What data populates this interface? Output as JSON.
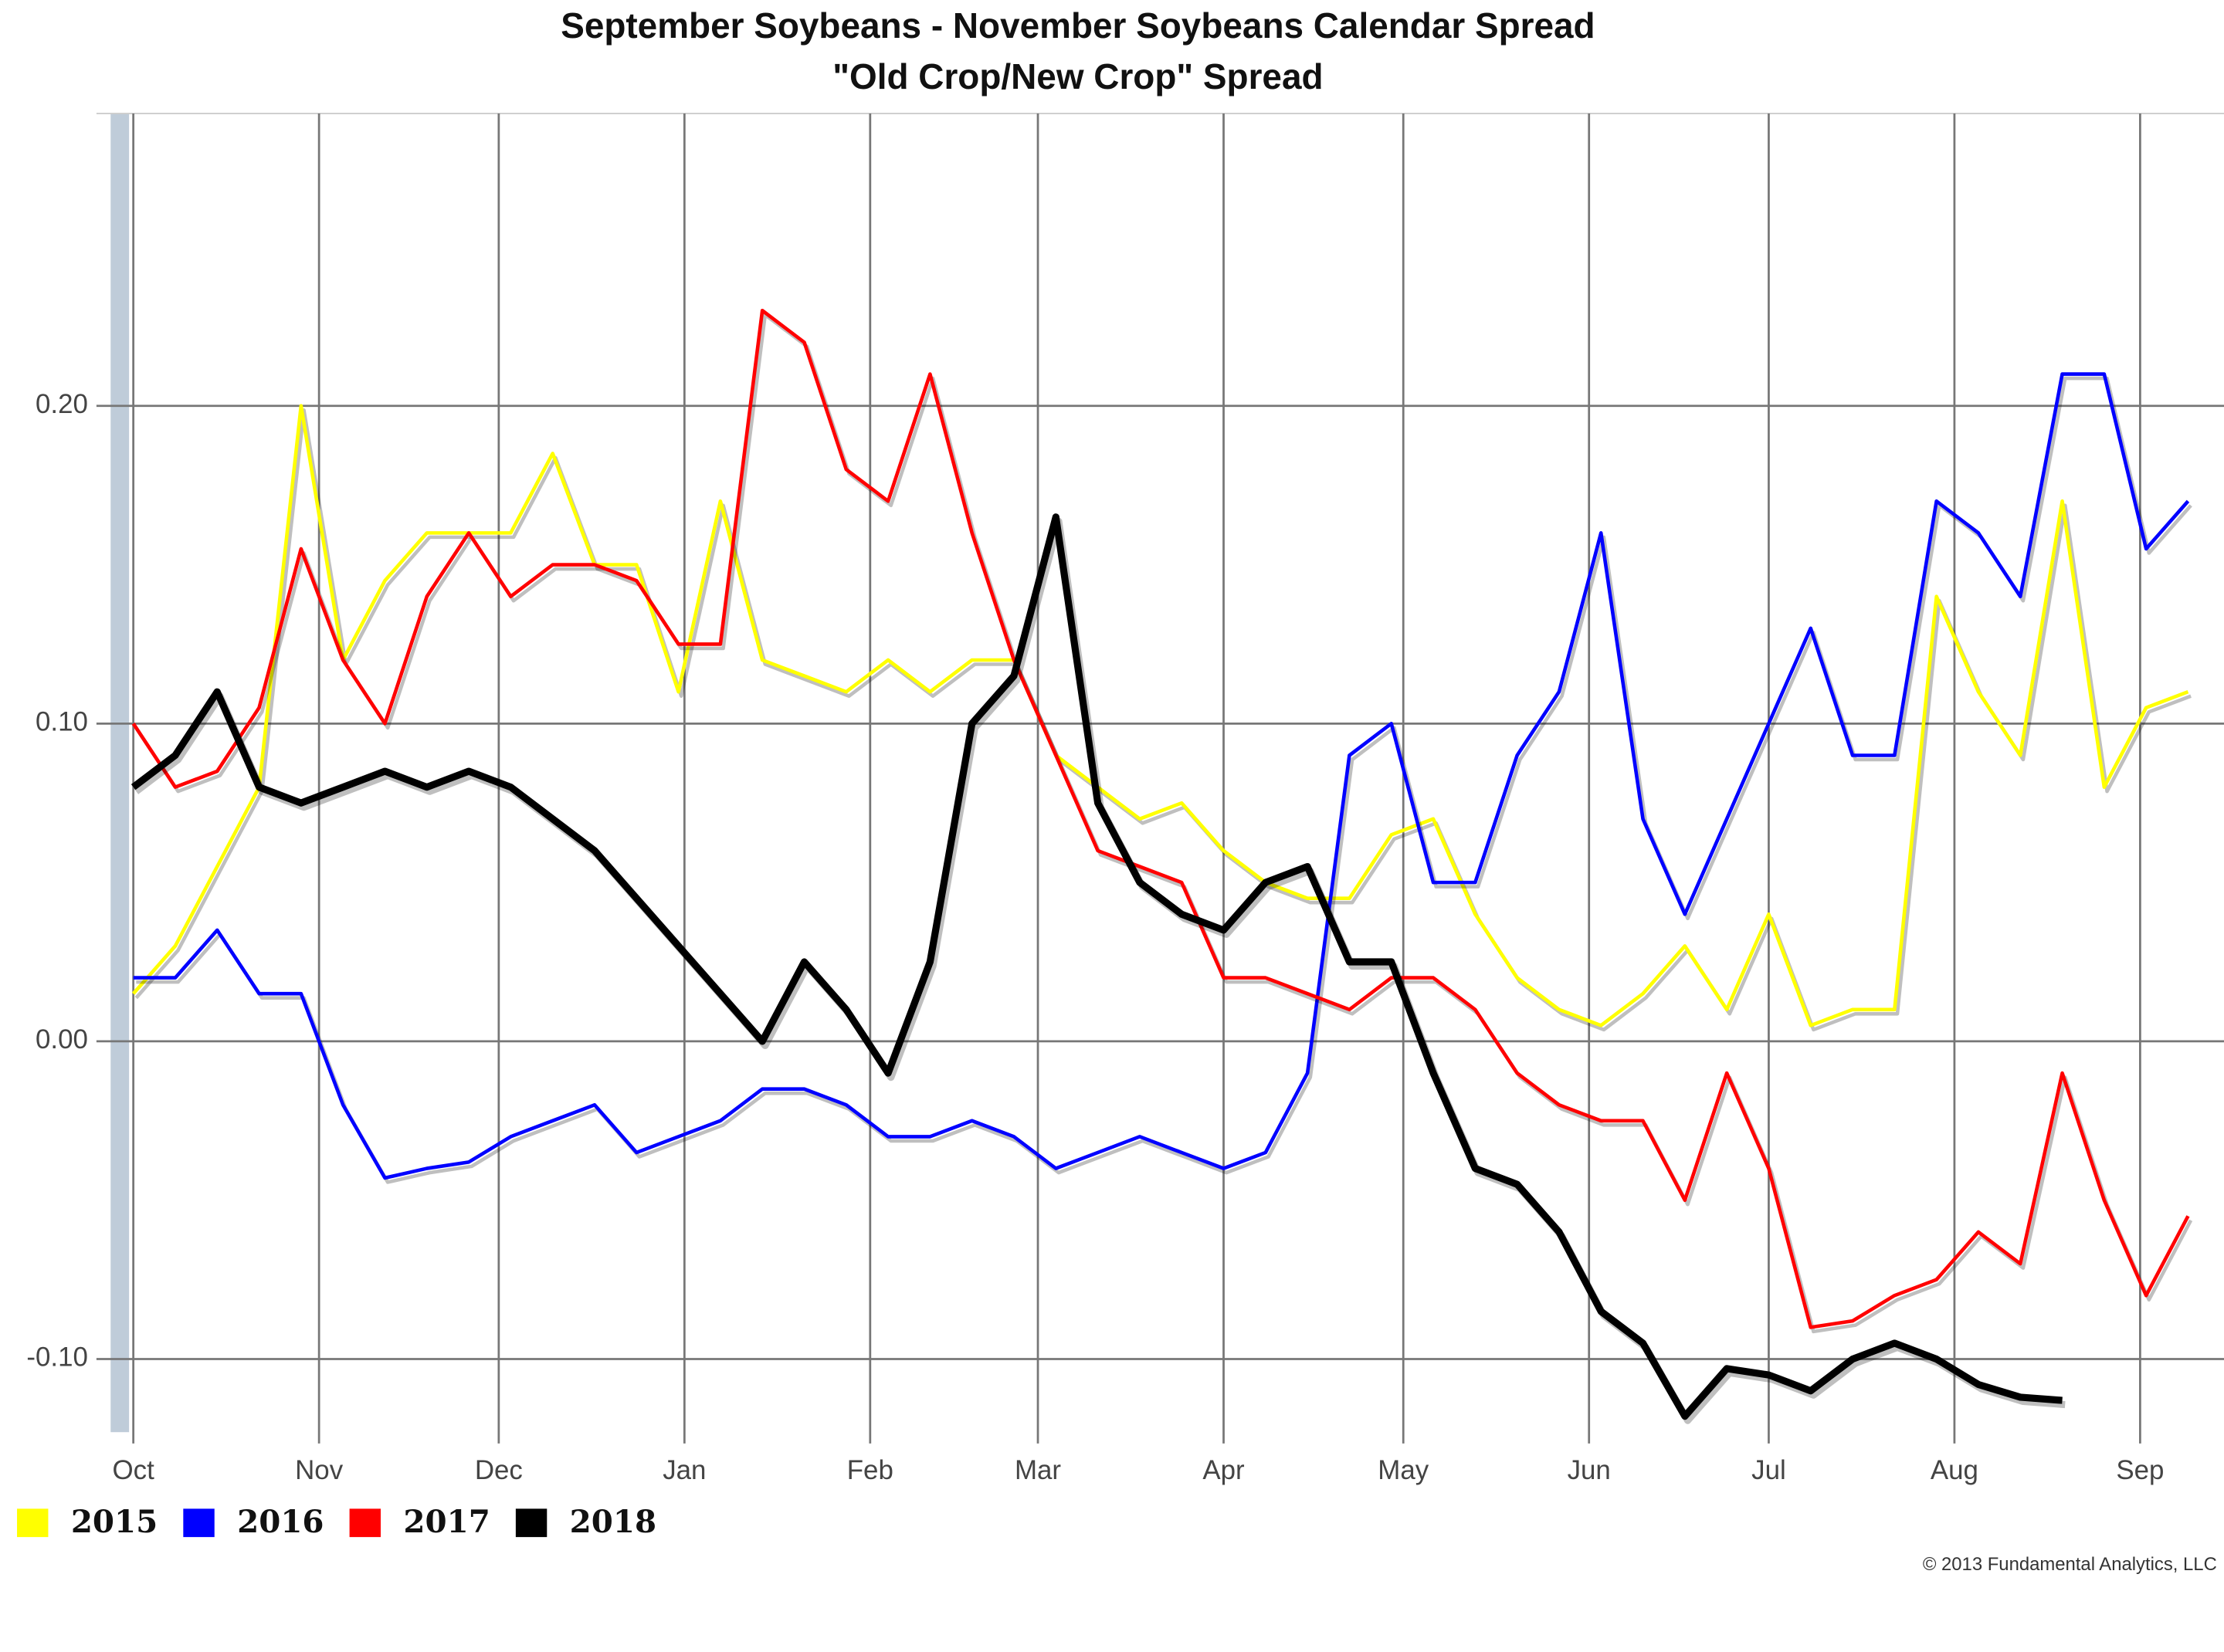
{
  "chart_data": {
    "type": "line",
    "title": "September Soybeans - November Soybeans Calendar Spread",
    "subtitle": "\"Old Crop/New Crop\" Spread",
    "credit": "© 2013 Fundamental Analytics, LLC",
    "x": [
      0,
      7,
      14,
      21,
      28,
      35,
      42,
      49,
      56,
      63,
      70,
      77,
      84,
      91,
      98,
      105,
      112,
      119,
      126,
      133,
      140,
      147,
      154,
      161,
      168,
      175,
      182,
      189,
      196,
      203,
      210,
      217,
      224,
      231,
      238,
      245,
      252,
      259,
      266,
      273,
      280,
      287,
      294,
      301,
      308,
      315,
      322,
      329,
      336,
      343
    ],
    "xlim": [
      0,
      349
    ],
    "xticks": [
      {
        "value": 0,
        "label": "Oct"
      },
      {
        "value": 31,
        "label": "Nov"
      },
      {
        "value": 61,
        "label": "Dec"
      },
      {
        "value": 92,
        "label": "Jan"
      },
      {
        "value": 123,
        "label": "Feb"
      },
      {
        "value": 151,
        "label": "Mar"
      },
      {
        "value": 182,
        "label": "Apr"
      },
      {
        "value": 212,
        "label": "May"
      },
      {
        "value": 243,
        "label": "Jun"
      },
      {
        "value": 273,
        "label": "Jul"
      },
      {
        "value": 304,
        "label": "Aug"
      },
      {
        "value": 335,
        "label": "Sep"
      }
    ],
    "ylim": [
      -0.123,
      0.292
    ],
    "yticks": [
      {
        "value": -0.1,
        "label": "-0.10"
      },
      {
        "value": 0,
        "label": "0.00"
      },
      {
        "value": 0.1,
        "label": "0.10"
      },
      {
        "value": 0.2,
        "label": "0.20"
      }
    ],
    "grid": true,
    "legend": "bottom-left",
    "series": [
      {
        "name": "2015",
        "color": "#ffff00",
        "values": [
          0.015,
          0.03,
          0.055,
          0.08,
          0.2,
          0.12,
          0.145,
          0.16,
          0.16,
          0.16,
          0.185,
          0.15,
          0.15,
          0.11,
          0.17,
          0.12,
          0.115,
          0.11,
          0.12,
          0.11,
          0.12,
          0.12,
          0.09,
          0.08,
          0.07,
          0.075,
          0.06,
          0.05,
          0.045,
          0.045,
          0.065,
          0.07,
          0.04,
          0.02,
          0.01,
          0.005,
          0.015,
          0.03,
          0.01,
          0.04,
          0.005,
          0.01,
          0.01,
          0.14,
          0.11,
          0.09,
          0.17,
          0.08,
          0.105,
          0.11
        ]
      },
      {
        "name": "2016",
        "color": "#0000ff",
        "values": [
          0.02,
          0.02,
          0.035,
          0.015,
          0.015,
          -0.02,
          -0.043,
          -0.04,
          -0.038,
          -0.03,
          -0.025,
          -0.02,
          -0.035,
          -0.03,
          -0.025,
          -0.015,
          -0.015,
          -0.02,
          -0.03,
          -0.03,
          -0.025,
          -0.03,
          -0.04,
          -0.035,
          -0.03,
          -0.035,
          -0.04,
          -0.035,
          -0.01,
          0.09,
          0.1,
          0.05,
          0.05,
          0.09,
          0.11,
          0.16,
          0.07,
          0.04,
          0.07,
          0.1,
          0.13,
          0.09,
          0.09,
          0.17,
          0.16,
          0.14,
          0.21,
          0.21,
          0.155,
          0.17
        ]
      },
      {
        "name": "2017",
        "color": "#ff0000",
        "values": [
          0.1,
          0.08,
          0.085,
          0.105,
          0.155,
          0.12,
          0.1,
          0.14,
          0.16,
          0.14,
          0.15,
          0.15,
          0.145,
          0.125,
          0.125,
          0.23,
          0.22,
          0.18,
          0.17,
          0.21,
          0.16,
          0.12,
          0.09,
          0.06,
          0.055,
          0.05,
          0.02,
          0.02,
          0.015,
          0.01,
          0.02,
          0.02,
          0.01,
          -0.01,
          -0.02,
          -0.025,
          -0.025,
          -0.05,
          -0.01,
          -0.04,
          -0.09,
          -0.088,
          -0.08,
          -0.075,
          -0.06,
          -0.07,
          -0.01,
          -0.05,
          -0.08,
          -0.055
        ]
      },
      {
        "name": "2018",
        "color": "#000000",
        "values": [
          0.08,
          0.09,
          0.11,
          0.08,
          0.075,
          0.08,
          0.085,
          0.08,
          0.085,
          0.08,
          0.07,
          0.06,
          0.045,
          0.03,
          0.015,
          0.0,
          0.025,
          0.01,
          -0.01,
          0.025,
          0.1,
          0.115,
          0.165,
          0.075,
          0.05,
          0.04,
          0.035,
          0.05,
          0.055,
          0.025,
          0.025,
          -0.01,
          -0.04,
          -0.045,
          -0.06,
          -0.085,
          -0.095,
          -0.118,
          -0.103,
          -0.105,
          -0.11,
          -0.1,
          -0.095,
          -0.1,
          -0.108,
          -0.112,
          -0.113,
          null,
          null,
          null
        ]
      }
    ]
  }
}
